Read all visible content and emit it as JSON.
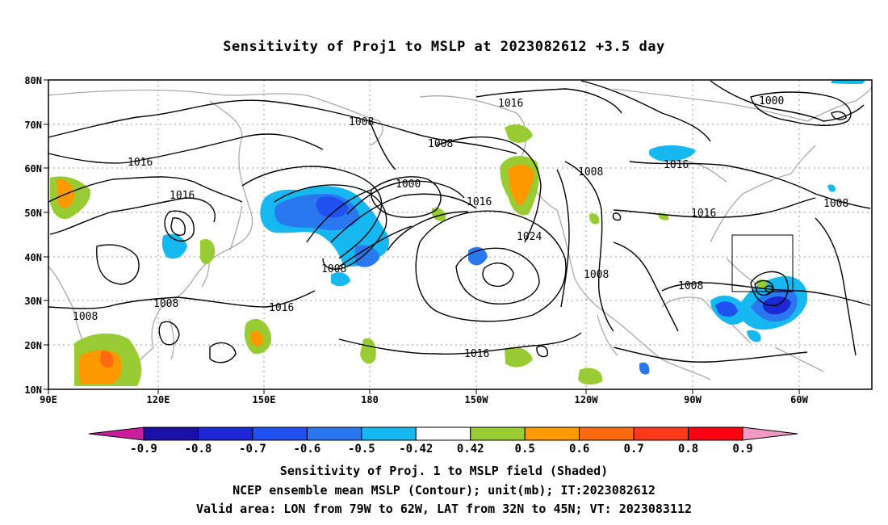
{
  "title": "Sensitivity of Proj1 to MSLP at 2023082612 +3.5 day",
  "map": {
    "lat_labels": [
      "80N",
      "70N",
      "60N",
      "50N",
      "40N",
      "30N",
      "20N",
      "10N"
    ],
    "lon_labels": [
      "90E",
      "120E",
      "150E",
      "180",
      "150W",
      "120W",
      "90W",
      "60W"
    ],
    "contour_labels": [
      "1016",
      "1008",
      "1008",
      "1000",
      "1016",
      "1016",
      "1008",
      "1016",
      "1000",
      "1008",
      "1024",
      "1016",
      "1008",
      "1008",
      "1016",
      "1008",
      "1008",
      "1016",
      "1008",
      "1016"
    ],
    "valid_box": {
      "lon_from": "79W",
      "lon_to": "62W",
      "lat_from": "32N",
      "lat_to": "45N"
    }
  },
  "colorbar": {
    "labels": [
      "-0.9",
      "-0.8",
      "-0.7",
      "-0.6",
      "-0.5",
      "-0.42",
      "0.42",
      "0.5",
      "0.6",
      "0.7",
      "0.8",
      "0.9"
    ],
    "colors": [
      "#1a10a8",
      "#1c27d6",
      "#2150f0",
      "#2a78f0",
      "#16b8f2",
      "#ffffff",
      "#99cc33",
      "#ff9900",
      "#ff6a10",
      "#ff3a1a",
      "#ff0010"
    ],
    "low_end_color": "#c8209c",
    "high_end_color": "#f29ac6"
  },
  "captions": {
    "line1": "Sensitivity of Proj. 1 to MSLP field (Shaded)",
    "line2": "NCEP ensemble mean MSLP (Contour); unit(mb); IT:2023082612",
    "line3": "Valid area: LON from 79W to 62W, LAT from 32N to 45N; VT: 2023083112"
  }
}
